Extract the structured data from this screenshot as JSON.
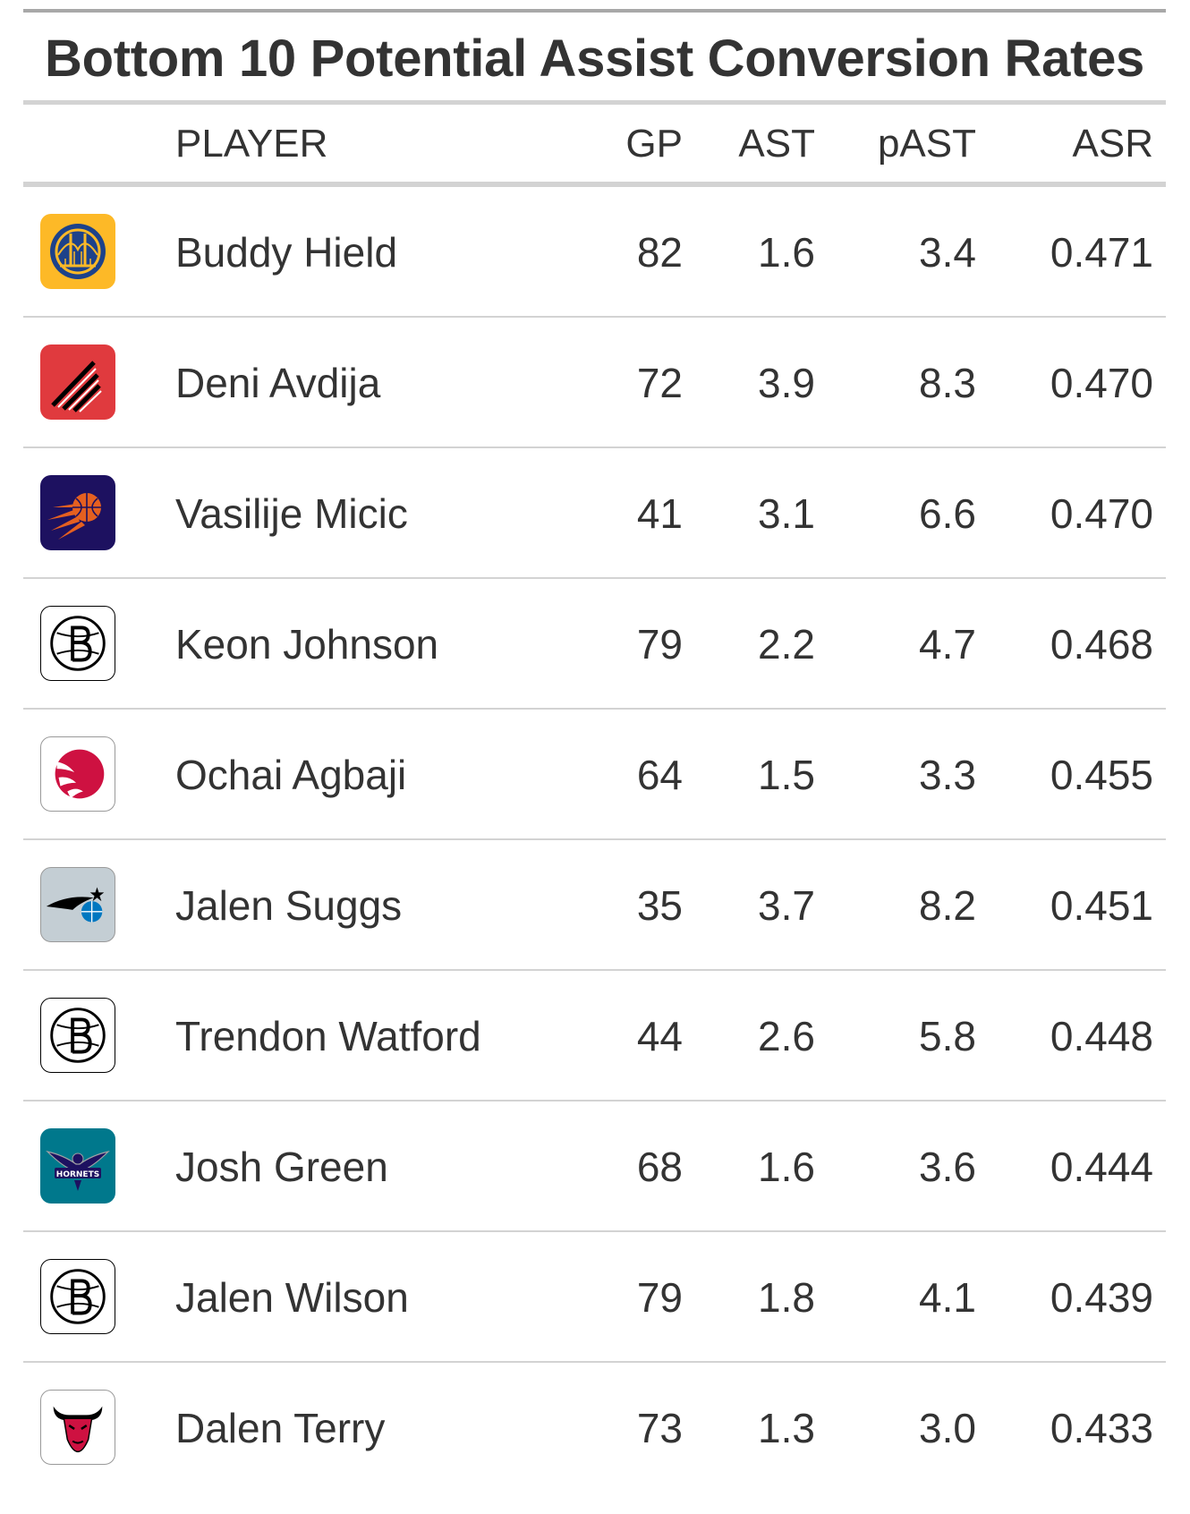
{
  "chart_data": {
    "type": "table",
    "title": "Bottom 10 Potential Assist Conversion Rates",
    "columns": [
      "",
      "PLAYER",
      "GP",
      "AST",
      "pAST",
      "ASR"
    ],
    "rows": [
      {
        "team_logo": "warriors-logo-icon",
        "logo_color": "#FDB927",
        "player": "Buddy Hield",
        "gp": "82",
        "ast": "1.6",
        "past": "3.4",
        "asr": "0.471"
      },
      {
        "team_logo": "trail-blazers-logo-icon",
        "logo_color": "#E03A3E",
        "player": "Deni Avdija",
        "gp": "72",
        "ast": "3.9",
        "past": "8.3",
        "asr": "0.470"
      },
      {
        "team_logo": "suns-logo-icon",
        "logo_color": "#1D1160",
        "player": "Vasilije Micic",
        "gp": "41",
        "ast": "3.1",
        "past": "6.6",
        "asr": "0.470"
      },
      {
        "team_logo": "nets-logo-icon",
        "logo_color": "#000000",
        "player": "Keon Johnson",
        "gp": "79",
        "ast": "2.2",
        "past": "4.7",
        "asr": "0.468"
      },
      {
        "team_logo": "raptors-logo-icon",
        "logo_color": "#CE1141",
        "player": "Ochai Agbaji",
        "gp": "64",
        "ast": "1.5",
        "past": "3.3",
        "asr": "0.455"
      },
      {
        "team_logo": "magic-logo-icon",
        "logo_color": "#C4CED4",
        "player": "Jalen Suggs",
        "gp": "35",
        "ast": "3.7",
        "past": "8.2",
        "asr": "0.451"
      },
      {
        "team_logo": "nets-logo-icon",
        "logo_color": "#000000",
        "player": "Trendon Watford",
        "gp": "44",
        "ast": "2.6",
        "past": "5.8",
        "asr": "0.448"
      },
      {
        "team_logo": "hornets-logo-icon",
        "logo_color": "#00788C",
        "player": "Josh Green",
        "gp": "68",
        "ast": "1.6",
        "past": "3.6",
        "asr": "0.444"
      },
      {
        "team_logo": "nets-logo-icon",
        "logo_color": "#000000",
        "player": "Jalen Wilson",
        "gp": "79",
        "ast": "1.8",
        "past": "4.1",
        "asr": "0.439"
      },
      {
        "team_logo": "bulls-logo-icon",
        "logo_color": "#CE1141",
        "player": "Dalen Terry",
        "gp": "73",
        "ast": "1.3",
        "past": "3.0",
        "asr": "0.433"
      }
    ]
  }
}
